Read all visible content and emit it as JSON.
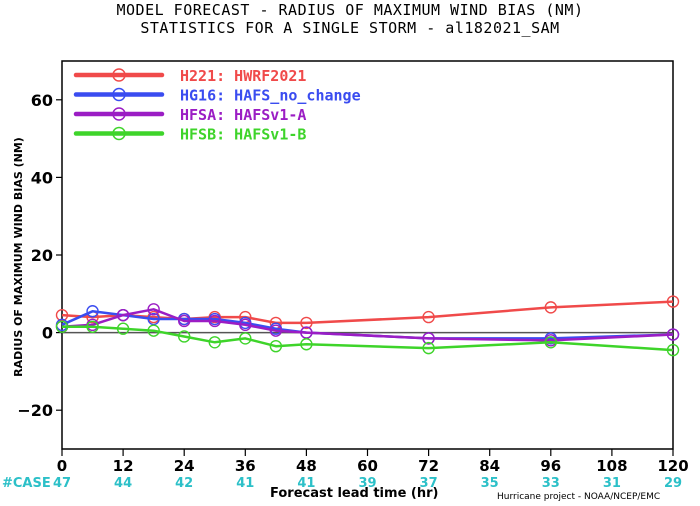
{
  "chart_data": {
    "type": "line",
    "title": "MODEL FORECAST - RADIUS OF MAXIMUM WIND BIAS (NM)",
    "subtitle": "STATISTICS FOR A SINGLE STORM - al182021_SAM",
    "xlabel": "Forecast lead time (hr)",
    "ylabel": "RADIUS OF MAXIMUM WIND BIAS (NM)",
    "xlim": [
      0,
      120
    ],
    "ylim": [
      -30,
      70
    ],
    "xticks": [
      0,
      12,
      24,
      36,
      48,
      60,
      72,
      84,
      96,
      108,
      120
    ],
    "yticks": [
      -20,
      0,
      20,
      40,
      60
    ],
    "ytick_labels": [
      "−20",
      "0",
      "20",
      "40",
      "60"
    ],
    "zero_line": true,
    "legend_position": "top-left",
    "series": [
      {
        "name": "H221: HWRF2021",
        "color": "#f04a4a",
        "x": [
          0,
          6,
          12,
          18,
          24,
          30,
          36,
          42,
          48,
          72,
          96,
          120
        ],
        "y": [
          4.5,
          4.0,
          4.5,
          4.0,
          3.5,
          4.0,
          4.0,
          2.5,
          2.5,
          4.0,
          6.5,
          8.0
        ]
      },
      {
        "name": "HG16: HAFS_no_change",
        "color": "#3a4cf0",
        "x": [
          0,
          6,
          12,
          18,
          24,
          30,
          36,
          42,
          48,
          72,
          96,
          120
        ],
        "y": [
          2.0,
          5.5,
          4.5,
          3.5,
          3.5,
          3.5,
          2.5,
          1.0,
          0.0,
          -1.5,
          -1.5,
          -0.5
        ]
      },
      {
        "name": "HFSA: HAFSv1-A",
        "color": "#9b1dc4",
        "x": [
          0,
          6,
          12,
          18,
          24,
          30,
          36,
          42,
          48,
          72,
          96,
          120
        ],
        "y": [
          1.5,
          2.0,
          4.5,
          6.0,
          3.0,
          3.0,
          2.0,
          0.5,
          0.0,
          -1.5,
          -2.0,
          -0.5
        ]
      },
      {
        "name": "HFSB: HAFSv1-B",
        "color": "#3ed42a",
        "x": [
          0,
          6,
          12,
          18,
          24,
          30,
          36,
          42,
          48,
          72,
          96,
          120
        ],
        "y": [
          1.5,
          1.5,
          1.0,
          0.5,
          -1.0,
          -2.5,
          -1.5,
          -3.5,
          -3.0,
          -4.0,
          -2.5,
          -4.5
        ]
      }
    ],
    "case_label": "#CASE",
    "case_counts": [
      {
        "x": 0,
        "n": "47"
      },
      {
        "x": 12,
        "n": "44"
      },
      {
        "x": 24,
        "n": "42"
      },
      {
        "x": 36,
        "n": "41"
      },
      {
        "x": 48,
        "n": "41"
      },
      {
        "x": 60,
        "n": "39"
      },
      {
        "x": 72,
        "n": "37"
      },
      {
        "x": 84,
        "n": "35"
      },
      {
        "x": 96,
        "n": "33"
      },
      {
        "x": 108,
        "n": "31"
      },
      {
        "x": 120,
        "n": "29"
      }
    ],
    "case_color": "#2cc0c8",
    "credit": "Hurricane project - NOAA/NCEP/EMC"
  }
}
